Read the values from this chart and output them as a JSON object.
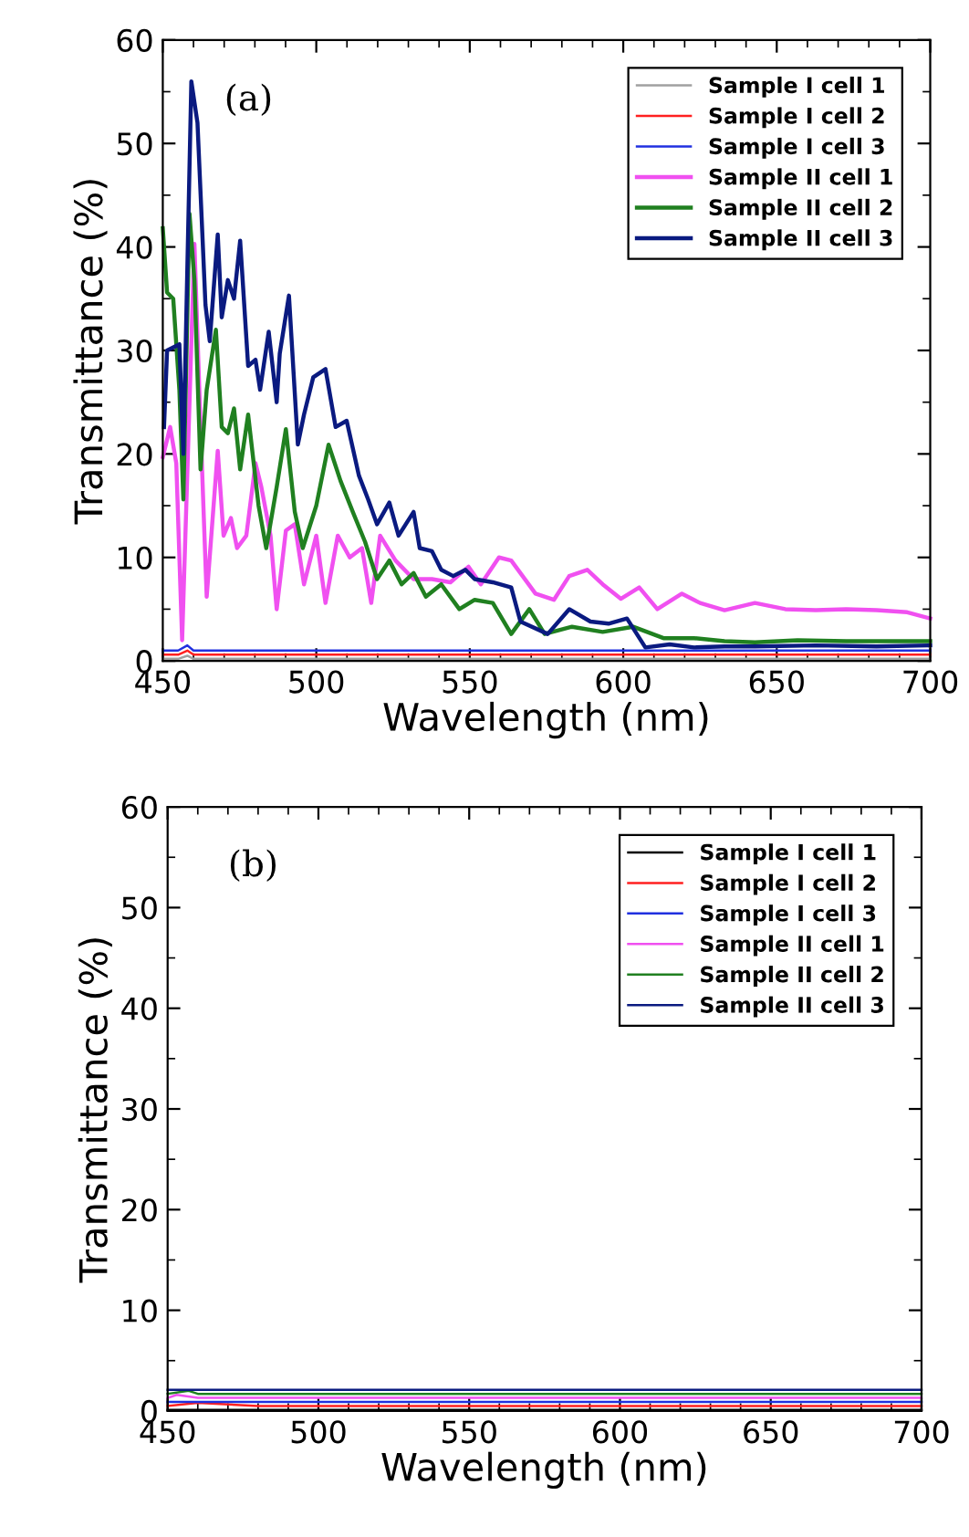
{
  "chart_data": [
    {
      "type": "line",
      "annotations": [
        "(a)"
      ],
      "xlabel": "Wavelength (nm)",
      "ylabel": "Transmittance (%)",
      "xlim": [
        450,
        700
      ],
      "ylim": [
        0,
        60
      ],
      "xticks": [
        450,
        500,
        550,
        600,
        650,
        700
      ],
      "yticks": [
        0,
        10,
        20,
        30,
        40,
        50,
        60
      ],
      "grid": false,
      "legend": "top right",
      "marker": "none",
      "line_style": "solid",
      "series": [
        {
          "name": "Sample I cell 1",
          "color": "#a0a0a0",
          "x": [
            450,
            455,
            458,
            460,
            465,
            470,
            480,
            500,
            550,
            600,
            650,
            700
          ],
          "values": [
            0.2,
            0.2,
            0.5,
            0.2,
            0.2,
            0.2,
            0.2,
            0.2,
            0.2,
            0.2,
            0.2,
            0.2
          ]
        },
        {
          "name": "Sample I cell 2",
          "color": "#ff2020",
          "x": [
            450,
            455,
            458,
            460,
            465,
            470,
            480,
            500,
            550,
            600,
            650,
            700
          ],
          "values": [
            0.6,
            0.6,
            1.0,
            0.6,
            0.6,
            0.6,
            0.6,
            0.6,
            0.6,
            0.6,
            0.6,
            0.6
          ]
        },
        {
          "name": "Sample I cell 3",
          "color": "#2030e0",
          "x": [
            450,
            455,
            458,
            460,
            465,
            470,
            480,
            500,
            550,
            600,
            650,
            700
          ],
          "values": [
            1.0,
            1.0,
            1.5,
            1.0,
            1.0,
            1.0,
            1.0,
            1.0,
            1.0,
            1.0,
            1.0,
            1.0
          ]
        },
        {
          "name": "Sample II cell 1",
          "color": "#f050f0",
          "x": [
            450,
            452.4,
            454.4,
            456.3,
            460.3,
            462.3,
            464.3,
            467.9,
            469.8,
            472.2,
            474.2,
            477.2,
            480.2,
            482.1,
            485.1,
            487.1,
            490.1,
            493,
            496,
            500,
            503,
            507,
            510.9,
            514.9,
            517.9,
            520.8,
            525.8,
            531.7,
            537.7,
            543.7,
            549.6,
            553.6,
            559.5,
            563.5,
            571.4,
            577.4,
            582.4,
            588.3,
            593.3,
            599.2,
            605.2,
            611.1,
            619.1,
            625,
            633,
            642.9,
            652.8,
            662.7,
            672.6,
            682.5,
            692.5,
            700
          ],
          "values": [
            19.7,
            22.6,
            19.1,
            2,
            40.3,
            22.6,
            6.2,
            20.3,
            12.1,
            13.8,
            10.9,
            12.1,
            19.1,
            16.8,
            12.1,
            5,
            12.6,
            13.2,
            7.4,
            12.1,
            5.6,
            12.1,
            10,
            10.9,
            5.6,
            12.1,
            9.7,
            7.9,
            7.9,
            7.6,
            9.1,
            7.4,
            10,
            9.7,
            6.5,
            5.9,
            8.2,
            8.8,
            7.4,
            6,
            7.1,
            5,
            6.5,
            5.6,
            4.9,
            5.6,
            5,
            4.9,
            5,
            4.9,
            4.7,
            4.1
          ]
        },
        {
          "name": "Sample II cell 2",
          "color": "#208020",
          "x": [
            450,
            451.4,
            453.4,
            455.4,
            456.7,
            458.7,
            460.3,
            462.3,
            464.3,
            467.3,
            469.2,
            471.2,
            473.2,
            475.2,
            477.8,
            481.2,
            483.7,
            487.1,
            490.1,
            493,
            495.6,
            500,
            504,
            507.9,
            511.9,
            515.9,
            519.8,
            523.8,
            527.8,
            531.7,
            535.7,
            540.7,
            546.6,
            551.6,
            557.5,
            563.5,
            569.4,
            574.4,
            583.3,
            593.3,
            603.2,
            613.1,
            623,
            633,
            642.9,
            656.8,
            672.6,
            700
          ],
          "values": [
            41.8,
            35.6,
            35,
            26.2,
            15.6,
            43.2,
            36.8,
            18.5,
            26.2,
            32,
            22.6,
            22,
            24.4,
            18.5,
            23.8,
            15,
            10.9,
            16.8,
            22.4,
            14.4,
            10.9,
            15,
            20.9,
            17.4,
            14.4,
            11.5,
            7.9,
            9.7,
            7.4,
            8.5,
            6.2,
            7.4,
            5,
            5.9,
            5.6,
            2.6,
            5,
            2.6,
            3.3,
            2.8,
            3.3,
            2.2,
            2.2,
            1.9,
            1.8,
            2.0,
            1.9,
            1.9
          ]
        },
        {
          "name": "Sample II cell 3",
          "color": "#0a1a80",
          "x": [
            450.4,
            451.4,
            455.4,
            456.7,
            459.3,
            461.3,
            463.9,
            465.3,
            467.9,
            469.2,
            471.2,
            473.2,
            475.2,
            477.8,
            480.2,
            481.7,
            484.5,
            487.1,
            488.1,
            491.1,
            494,
            496,
            499,
            503,
            506.3,
            509.9,
            513.9,
            516.9,
            519.8,
            523.8,
            526.8,
            531.7,
            533.7,
            537.7,
            540.7,
            544.6,
            548.6,
            551.6,
            557.5,
            563.5,
            566.5,
            575.4,
            582.4,
            589.3,
            595.2,
            601.2,
            607.2,
            615.1,
            623.1,
            633,
            642.9,
            662.7,
            682.5,
            700
          ],
          "values": [
            22.6,
            30,
            30.6,
            20,
            56,
            52,
            34.4,
            30.9,
            41.2,
            33.2,
            36.8,
            35,
            40.6,
            28.5,
            29.1,
            26.2,
            31.8,
            25,
            29.7,
            35.3,
            20.9,
            23.8,
            27.4,
            28.2,
            22.6,
            23.2,
            17.9,
            15.6,
            13.2,
            15.3,
            12.1,
            14.4,
            10.9,
            10.6,
            8.8,
            8.2,
            8.8,
            7.9,
            7.6,
            7.1,
            3.8,
            2.6,
            5,
            3.8,
            3.6,
            4.1,
            1.3,
            1.6,
            1.3,
            1.4,
            1.4,
            1.5,
            1.4,
            1.5
          ]
        }
      ]
    },
    {
      "type": "line",
      "annotations": [
        "(b)"
      ],
      "xlabel": "Wavelength (nm)",
      "ylabel": "Transmittance (%)",
      "xlim": [
        450,
        700
      ],
      "ylim": [
        0,
        60
      ],
      "xticks": [
        450,
        500,
        550,
        600,
        650,
        700
      ],
      "yticks": [
        0,
        10,
        20,
        30,
        40,
        50,
        60
      ],
      "grid": false,
      "legend": "top right",
      "marker": "none",
      "line_style": "solid",
      "series": [
        {
          "name": "Sample I cell 1",
          "color": "#000000",
          "x": [
            450,
            460,
            480,
            500,
            550,
            600,
            650,
            700
          ],
          "values": [
            0.1,
            0.1,
            0.1,
            0.1,
            0.1,
            0.1,
            0.1,
            0.1
          ]
        },
        {
          "name": "Sample I cell 2",
          "color": "#ff2020",
          "x": [
            450,
            460,
            480,
            500,
            550,
            600,
            650,
            700
          ],
          "values": [
            0.5,
            0.8,
            0.5,
            0.5,
            0.5,
            0.5,
            0.5,
            0.5
          ]
        },
        {
          "name": "Sample I cell 3",
          "color": "#2030e0",
          "x": [
            450,
            460,
            480,
            500,
            550,
            600,
            650,
            700
          ],
          "values": [
            0.9,
            0.9,
            0.9,
            0.9,
            0.9,
            0.9,
            0.9,
            0.9
          ]
        },
        {
          "name": "Sample II cell 1",
          "color": "#f050f0",
          "x": [
            450,
            453,
            460,
            470,
            480,
            500,
            550,
            600,
            650,
            700
          ],
          "values": [
            1.3,
            1.6,
            1.3,
            1.3,
            1.3,
            1.3,
            1.3,
            1.3,
            1.3,
            1.3
          ]
        },
        {
          "name": "Sample II cell 2",
          "color": "#208020",
          "x": [
            450,
            457,
            460,
            480,
            500,
            550,
            600,
            640,
            670,
            700
          ],
          "values": [
            1.7,
            2.0,
            1.7,
            1.7,
            1.7,
            1.7,
            1.7,
            1.7,
            1.7,
            1.7
          ]
        },
        {
          "name": "Sample II cell 3",
          "color": "#0a1a80",
          "x": [
            450,
            455,
            460,
            480,
            500,
            550,
            600,
            630,
            660,
            700
          ],
          "values": [
            2.1,
            2.1,
            2.1,
            2.1,
            2.1,
            2.1,
            2.1,
            2.1,
            2.1,
            2.1
          ]
        }
      ]
    }
  ]
}
